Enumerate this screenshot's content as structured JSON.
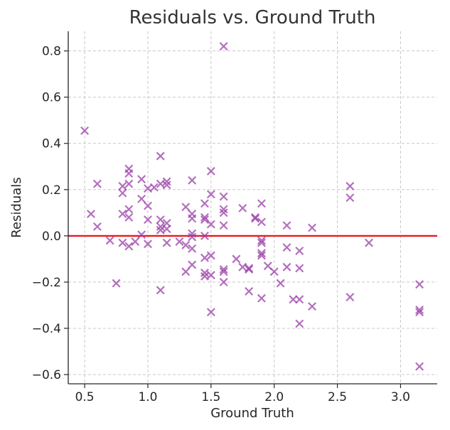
{
  "chart_data": {
    "type": "scatter",
    "title": "Residuals vs. Ground Truth",
    "xlabel": "Ground Truth",
    "ylabel": "Residuals",
    "xlim": [
      0.37,
      3.29
    ],
    "ylim": [
      -0.64,
      0.885
    ],
    "xticks": [
      0.5,
      1.0,
      1.5,
      2.0,
      2.5,
      3.0
    ],
    "xtick_labels": [
      "0.5",
      "1.0",
      "1.5",
      "2.0",
      "2.5",
      "3.0"
    ],
    "yticks": [
      -0.6,
      -0.4,
      -0.2,
      0.0,
      0.2,
      0.4,
      0.6,
      0.8
    ],
    "ytick_labels": [
      "−0.6",
      "−0.4",
      "−0.2",
      "0.0",
      "0.2",
      "0.4",
      "0.6",
      "0.8"
    ],
    "grid": true,
    "marker": "x",
    "marker_color": "#9b3fa8",
    "reference_line": {
      "y": 0.0,
      "color": "#e8141a"
    },
    "points": [
      [
        0.5,
        0.455
      ],
      [
        0.55,
        0.095
      ],
      [
        0.6,
        0.225
      ],
      [
        0.6,
        0.04
      ],
      [
        0.7,
        -0.02
      ],
      [
        0.75,
        -0.205
      ],
      [
        0.8,
        0.215
      ],
      [
        0.8,
        0.185
      ],
      [
        0.8,
        0.095
      ],
      [
        0.8,
        -0.03
      ],
      [
        0.85,
        0.29
      ],
      [
        0.85,
        0.27
      ],
      [
        0.85,
        0.225
      ],
      [
        0.85,
        0.115
      ],
      [
        0.85,
        0.08
      ],
      [
        0.85,
        -0.045
      ],
      [
        0.9,
        -0.025
      ],
      [
        0.95,
        0.245
      ],
      [
        0.95,
        0.16
      ],
      [
        0.95,
        0.005
      ],
      [
        1.0,
        0.205
      ],
      [
        1.0,
        0.13
      ],
      [
        1.0,
        0.07
      ],
      [
        1.0,
        -0.035
      ],
      [
        1.05,
        0.21
      ],
      [
        1.1,
        0.345
      ],
      [
        1.1,
        0.225
      ],
      [
        1.1,
        0.07
      ],
      [
        1.1,
        0.04
      ],
      [
        1.1,
        0.025
      ],
      [
        1.1,
        -0.235
      ],
      [
        1.15,
        0.235
      ],
      [
        1.15,
        0.22
      ],
      [
        1.15,
        0.055
      ],
      [
        1.15,
        0.03
      ],
      [
        1.15,
        -0.03
      ],
      [
        1.25,
        -0.025
      ],
      [
        1.3,
        0.125
      ],
      [
        1.3,
        -0.04
      ],
      [
        1.3,
        -0.155
      ],
      [
        1.35,
        0.24
      ],
      [
        1.35,
        0.095
      ],
      [
        1.35,
        0.075
      ],
      [
        1.35,
        0.01
      ],
      [
        1.35,
        -0.005
      ],
      [
        1.35,
        -0.055
      ],
      [
        1.35,
        -0.125
      ],
      [
        1.45,
        0.14
      ],
      [
        1.45,
        0.08
      ],
      [
        1.45,
        0.07
      ],
      [
        1.45,
        0.0
      ],
      [
        1.45,
        -0.095
      ],
      [
        1.45,
        -0.16
      ],
      [
        1.45,
        -0.175
      ],
      [
        1.5,
        0.28
      ],
      [
        1.5,
        0.18
      ],
      [
        1.5,
        0.05
      ],
      [
        1.5,
        -0.085
      ],
      [
        1.5,
        -0.17
      ],
      [
        1.5,
        -0.33
      ],
      [
        1.6,
        0.82
      ],
      [
        1.6,
        0.17
      ],
      [
        1.6,
        0.115
      ],
      [
        1.6,
        0.1
      ],
      [
        1.6,
        0.045
      ],
      [
        1.6,
        -0.145
      ],
      [
        1.6,
        -0.155
      ],
      [
        1.6,
        -0.2
      ],
      [
        1.7,
        -0.1
      ],
      [
        1.75,
        0.12
      ],
      [
        1.75,
        -0.135
      ],
      [
        1.8,
        -0.14
      ],
      [
        1.8,
        -0.145
      ],
      [
        1.8,
        -0.24
      ],
      [
        1.85,
        0.08
      ],
      [
        1.85,
        0.075
      ],
      [
        1.9,
        0.14
      ],
      [
        1.9,
        0.06
      ],
      [
        1.9,
        -0.02
      ],
      [
        1.9,
        -0.03
      ],
      [
        1.9,
        -0.075
      ],
      [
        1.9,
        -0.085
      ],
      [
        1.9,
        -0.27
      ],
      [
        1.95,
        -0.13
      ],
      [
        2.0,
        -0.155
      ],
      [
        2.05,
        -0.205
      ],
      [
        2.1,
        0.045
      ],
      [
        2.1,
        -0.05
      ],
      [
        2.1,
        -0.135
      ],
      [
        2.15,
        -0.275
      ],
      [
        2.2,
        -0.065
      ],
      [
        2.2,
        -0.14
      ],
      [
        2.2,
        -0.275
      ],
      [
        2.2,
        -0.38
      ],
      [
        2.3,
        0.035
      ],
      [
        2.3,
        -0.305
      ],
      [
        2.6,
        0.215
      ],
      [
        2.6,
        0.165
      ],
      [
        2.6,
        -0.265
      ],
      [
        2.75,
        -0.03
      ],
      [
        3.15,
        -0.21
      ],
      [
        3.15,
        -0.32
      ],
      [
        3.15,
        -0.33
      ],
      [
        3.15,
        -0.565
      ]
    ]
  }
}
